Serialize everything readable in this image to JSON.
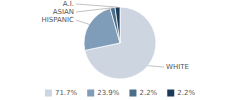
{
  "chart_data": {
    "type": "pie",
    "categories": [
      "WHITE",
      "HISPANIC",
      "ASIAN",
      "A.I."
    ],
    "values": [
      71.7,
      23.9,
      2.2,
      2.2
    ],
    "value_labels": [
      "71.7%",
      "23.9%",
      "2.2%",
      "2.2%"
    ],
    "colors": [
      "#cdd5e0",
      "#7f9db8",
      "#4a6e8a",
      "#1a3a5c"
    ],
    "legend": "bottom"
  }
}
